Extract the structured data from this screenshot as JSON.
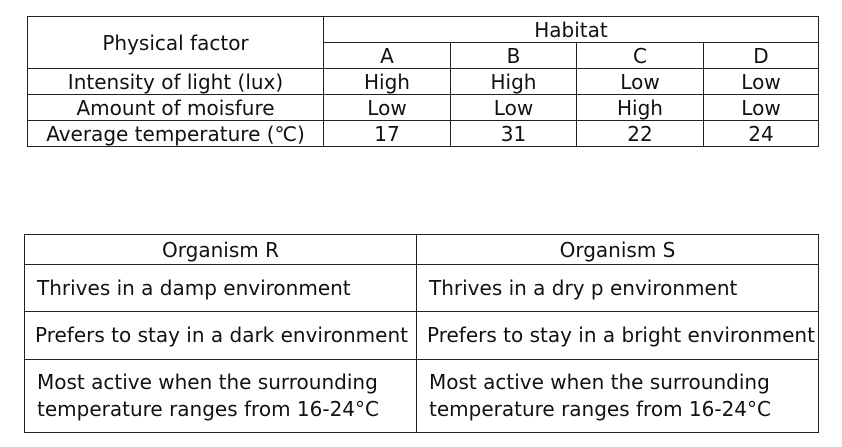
{
  "habitat_table": {
    "factor_header": "Physical factor",
    "habitat_header": "Habitat",
    "habitats": [
      "A",
      "B",
      "C",
      "D"
    ],
    "rows": [
      {
        "factor": "Intensity of light (lux)",
        "values": [
          "High",
          "High",
          "Low",
          "Low"
        ]
      },
      {
        "factor": "Amount of moisfure",
        "values": [
          "Low",
          "Low",
          "High",
          "Low"
        ]
      },
      {
        "factor": "Average temperature (℃)",
        "values": [
          "17",
          "31",
          "22",
          "24"
        ]
      }
    ]
  },
  "organism_table": {
    "headers": [
      "Organism R",
      "Organism S"
    ],
    "rows": [
      [
        "Thrives in a damp environment",
        "Thrives in a dry p environment"
      ],
      [
        "Prefers to stay in a dark environment",
        "Prefers to stay in a bright environment"
      ],
      [
        "Most active when the surrounding temperature ranges from 16-24°C",
        "Most active when the surrounding temperature ranges from 16-24°C"
      ]
    ]
  }
}
